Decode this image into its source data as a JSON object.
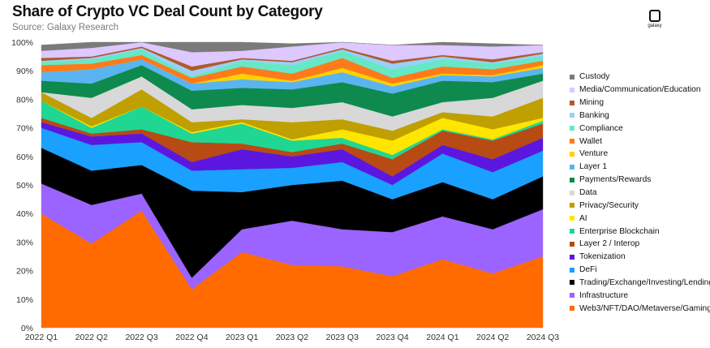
{
  "chart_data": {
    "type": "area",
    "title": "Share of Crypto VC Deal Count by Category",
    "subtitle": "Source: Galaxy Research",
    "logo_text": "galaxy",
    "xlabel": "",
    "ylabel": "",
    "ylim": [
      0,
      100
    ],
    "y_ticks": [
      "0%",
      "10%",
      "20%",
      "30%",
      "40%",
      "50%",
      "60%",
      "70%",
      "80%",
      "90%",
      "100%"
    ],
    "categories": [
      "2022 Q1",
      "2022 Q2",
      "2022 Q3",
      "2022 Q4",
      "2023 Q1",
      "2023 Q2",
      "2023 Q3",
      "2023 Q4",
      "2024 Q1",
      "2024 Q2",
      "2024 Q3"
    ],
    "legend_position": "right",
    "series": [
      {
        "name": "Web3/NFT/DAO/Metaverse/Gaming",
        "color": "#ff6b00",
        "values": [
          40,
          29.5,
          41,
          13.5,
          26.5,
          22,
          21.5,
          18,
          24,
          19,
          25
        ]
      },
      {
        "name": "Infrastructure",
        "color": "#9b63ff",
        "values": [
          10.5,
          13.5,
          6,
          4,
          8,
          15.5,
          13,
          15.5,
          15,
          15.5,
          16.5
        ]
      },
      {
        "name": "Trading/Exchange/Investing/Lending",
        "color": "#000000",
        "values": [
          12.5,
          12,
          10,
          30.5,
          13,
          12.5,
          17,
          11.5,
          12,
          10.5,
          11.5
        ]
      },
      {
        "name": "DeFi",
        "color": "#1aa0ff",
        "values": [
          7,
          9,
          8,
          7,
          8,
          6,
          6.5,
          5,
          10,
          9.5,
          9
        ]
      },
      {
        "name": "Tokenization",
        "color": "#5b17e0",
        "values": [
          2,
          3,
          3,
          3,
          7,
          4,
          4.5,
          3,
          3,
          4.5,
          4.5
        ]
      },
      {
        "name": "Layer 2 / Interop",
        "color": "#b84a14",
        "values": [
          1.5,
          1,
          1.5,
          7,
          2,
          1.5,
          2,
          6,
          5,
          6.5,
          5
        ]
      },
      {
        "name": "Enterprise Blockchain",
        "color": "#20d693",
        "values": [
          6,
          2,
          8,
          3,
          7,
          4,
          2,
          1.5,
          0.5,
          0.5,
          1
        ]
      },
      {
        "name": "AI",
        "color": "#ffe600",
        "values": [
          0,
          0.5,
          0,
          0.5,
          0.5,
          0.5,
          3,
          5,
          4,
          3.5,
          1
        ]
      },
      {
        "name": "Privacy/Security",
        "color": "#bfa000",
        "values": [
          3,
          3,
          6,
          3.5,
          1,
          6,
          3.5,
          3.5,
          2,
          4.5,
          7
        ]
      },
      {
        "name": "Data",
        "color": "#d8d8d8",
        "values": [
          0,
          7,
          4.5,
          4.5,
          5,
          5,
          6,
          5,
          3.5,
          6.5,
          6
        ]
      },
      {
        "name": "Payments/Rewards",
        "color": "#0e8a4e",
        "values": [
          4,
          5,
          4,
          6.5,
          6,
          6.5,
          7,
          8,
          7.5,
          5.5,
          2.5
        ]
      },
      {
        "name": "Layer 1",
        "color": "#5ab4f0",
        "values": [
          3,
          5,
          2,
          2.5,
          3,
          2.5,
          3.5,
          2.5,
          2,
          2,
          2
        ]
      },
      {
        "name": "Venture",
        "color": "#ffd200",
        "values": [
          0,
          0,
          0,
          0,
          2,
          0.5,
          1.5,
          1,
          0.5,
          0.5,
          1
        ]
      },
      {
        "name": "Wallet",
        "color": "#ff7a1a",
        "values": [
          2.5,
          2,
          1.5,
          2,
          2.5,
          2.5,
          3.5,
          2,
          2.5,
          2,
          1.5
        ]
      },
      {
        "name": "Compliance",
        "color": "#66e8c6",
        "values": [
          1,
          1.5,
          2,
          0.5,
          2,
          3,
          2.5,
          3,
          2.5,
          2,
          1.5
        ]
      },
      {
        "name": "Banking",
        "color": "#9ad0f5",
        "values": [
          0.5,
          0.5,
          0.5,
          2,
          0.5,
          1,
          0.5,
          2,
          1,
          0.5,
          1
        ]
      },
      {
        "name": "Mining",
        "color": "#b05a2a",
        "values": [
          1,
          0.5,
          0.5,
          1.5,
          0.5,
          0.5,
          0.5,
          1,
          0.5,
          1,
          0.5
        ]
      },
      {
        "name": "Media/Communication/Education",
        "color": "#ddc8ff",
        "values": [
          2.5,
          3,
          1.5,
          5,
          2.5,
          5,
          2,
          5.5,
          3.5,
          4.5,
          2.5
        ]
      },
      {
        "name": "Custody",
        "color": "#7a7a7a",
        "values": [
          2,
          2,
          0,
          8,
          3,
          1,
          0,
          0,
          1,
          1,
          0
        ]
      }
    ]
  }
}
